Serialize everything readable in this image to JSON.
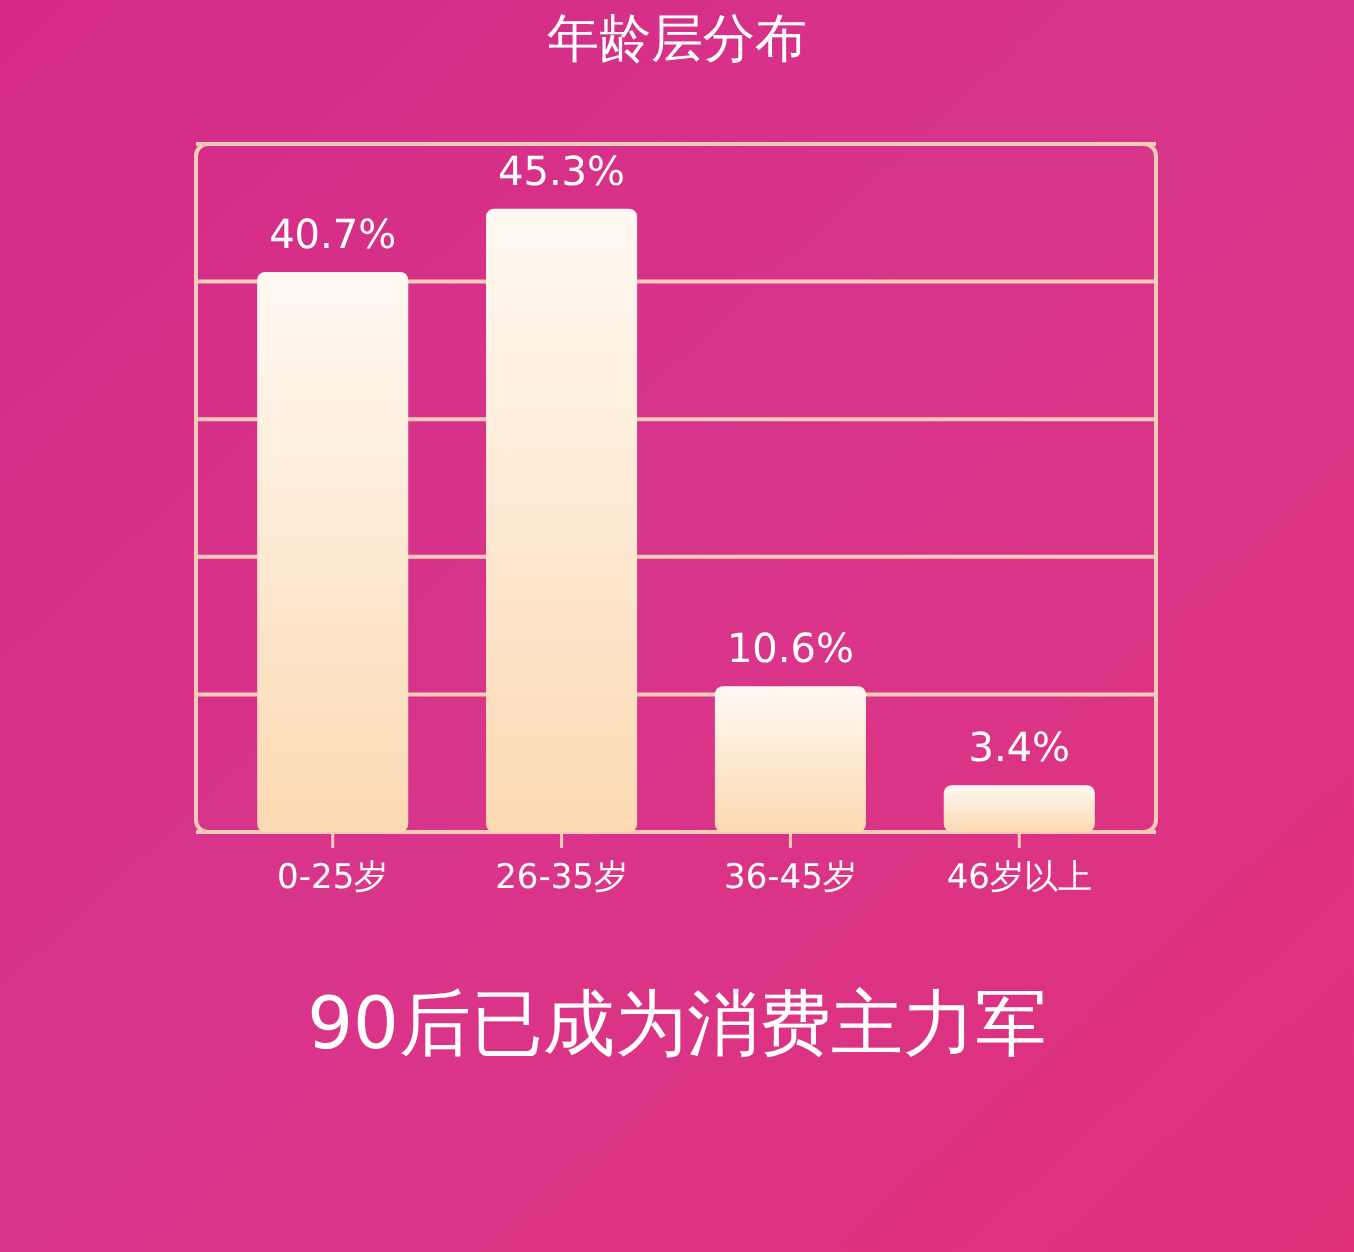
{
  "chart_data": {
    "type": "bar",
    "title": "年龄层分布",
    "annotations": [
      "90后已成为消费主力军"
    ],
    "categories": [
      "0-25岁",
      "26-35岁",
      "36-45岁",
      "46岁以上"
    ],
    "values": [
      40.7,
      45.3,
      10.6,
      3.4
    ],
    "value_labels": [
      "40.7%",
      "45.3%",
      "10.6%",
      "3.4%"
    ],
    "color": "#fcd9b2",
    "ylim": [
      0,
      50
    ],
    "yticks": [
      {
        "value": 0,
        "label": null
      },
      {
        "value": 10,
        "label": null
      },
      {
        "value": 20,
        "label": null
      },
      {
        "value": 30,
        "label": null
      },
      {
        "value": 40,
        "label": null
      },
      {
        "value": 50,
        "label": null
      }
    ],
    "grid": "y",
    "tick_labels": "x"
  }
}
